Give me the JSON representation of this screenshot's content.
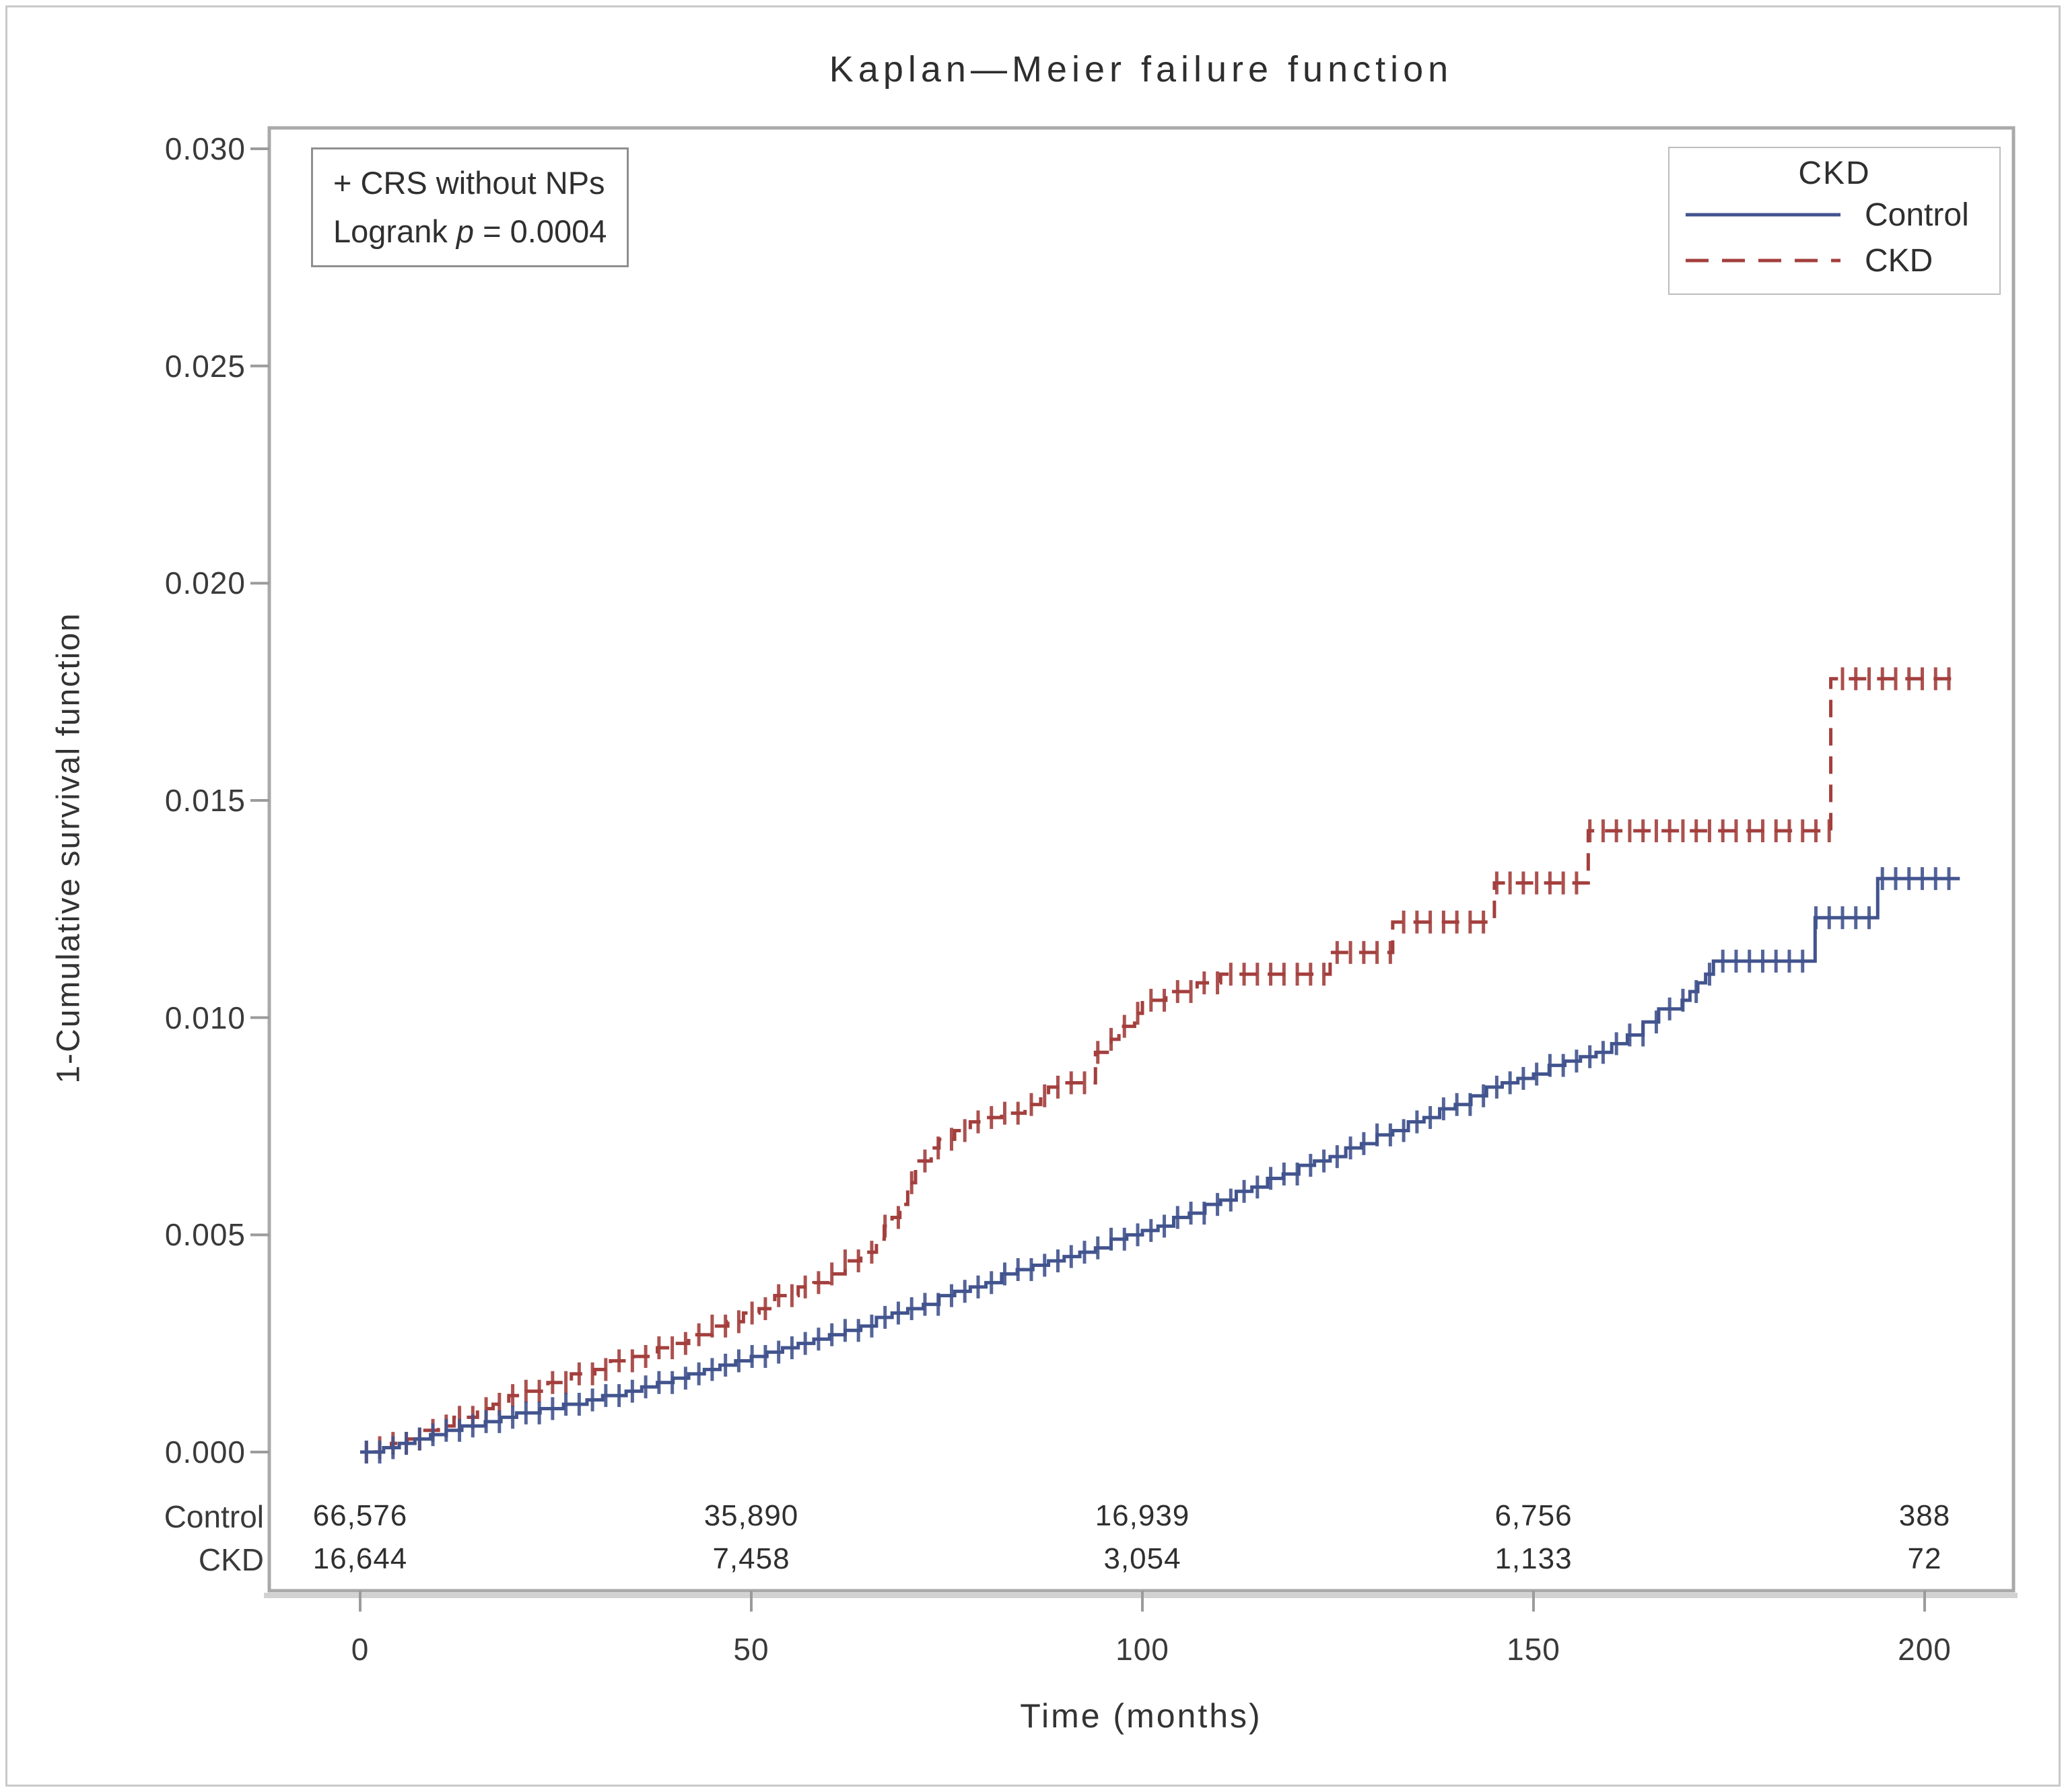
{
  "page": {
    "title": "Kaplan—Meier failure function"
  },
  "annotation": {
    "line1": "+ CRS without NPs",
    "line2_prefix": "Logrank ",
    "line2_italic": "p",
    "line2_suffix": " = 0.0004"
  },
  "legend": {
    "title": "CKD",
    "entries": [
      {
        "label": "Control",
        "style": "solid"
      },
      {
        "label": "CKD",
        "style": "dashed"
      }
    ]
  },
  "axes": {
    "y_label": "1-Cumulative survival function",
    "x_label": "Time (months)",
    "y_tick_labels": [
      "0.030",
      "0.025",
      "0.020",
      "0.015",
      "0.010",
      "0.005",
      "0.000"
    ],
    "x_tick_labels": [
      "0",
      "50",
      "100",
      "150",
      "200"
    ]
  },
  "risk_table": {
    "rows": [
      {
        "label": "Control",
        "counts": [
          "66,576",
          "35,890",
          "16,939",
          "6,756",
          "388"
        ]
      },
      {
        "label": "CKD",
        "counts": [
          "16,644",
          "7,458",
          "3,054",
          "1,133",
          "72"
        ]
      }
    ]
  },
  "chart_data": {
    "type": "line",
    "subtype": "kaplan-meier-failure-step",
    "title": "Kaplan—Meier failure function",
    "xlabel": "Time (months)",
    "ylabel": "1-Cumulative survival function",
    "xlim": [
      -11.6,
      211.4
    ],
    "ylim": [
      -0.0032,
      0.0305
    ],
    "x_ticks": [
      0,
      50,
      100,
      150,
      200
    ],
    "y_ticks": [
      0.03,
      0.025,
      0.02,
      0.015,
      0.01,
      0.005,
      0.0
    ],
    "grid": false,
    "legend_position": "top-right",
    "logrank_p": "0.0004",
    "annotation_text": "+ CRS without NPs",
    "censor_mark": "plus",
    "censor_interval_months": 1.7,
    "end_month": 204.5,
    "series": [
      {
        "name": "CKD",
        "color": "#a33f3d",
        "style": "dashed",
        "steps": [
          [
            0,
            0.0
          ],
          [
            2,
            0.0001
          ],
          [
            4,
            0.0002
          ],
          [
            6,
            0.0003
          ],
          [
            8,
            0.0005
          ],
          [
            10,
            0.0006
          ],
          [
            12,
            0.0008
          ],
          [
            15,
            0.001
          ],
          [
            17,
            0.0011
          ],
          [
            19,
            0.0013
          ],
          [
            21,
            0.0014
          ],
          [
            24,
            0.0016
          ],
          [
            27,
            0.0018
          ],
          [
            30,
            0.0019
          ],
          [
            32,
            0.0021
          ],
          [
            35,
            0.0022
          ],
          [
            38,
            0.0024
          ],
          [
            40,
            0.0025
          ],
          [
            42,
            0.0027
          ],
          [
            45,
            0.0029
          ],
          [
            47,
            0.003
          ],
          [
            49,
            0.0032
          ],
          [
            51,
            0.0033
          ],
          [
            53,
            0.0036
          ],
          [
            56,
            0.0038
          ],
          [
            58,
            0.0039
          ],
          [
            60,
            0.0041
          ],
          [
            62,
            0.0044
          ],
          [
            64,
            0.0046
          ],
          [
            66,
            0.0049
          ],
          [
            67,
            0.0052
          ],
          [
            68,
            0.0054
          ],
          [
            69,
            0.0057
          ],
          [
            70,
            0.0062
          ],
          [
            71,
            0.0067
          ],
          [
            73,
            0.007
          ],
          [
            74,
            0.0072
          ],
          [
            76,
            0.0074
          ],
          [
            78,
            0.0076
          ],
          [
            80,
            0.0077
          ],
          [
            82,
            0.0078
          ],
          [
            85,
            0.008
          ],
          [
            87,
            0.0082
          ],
          [
            88,
            0.0084
          ],
          [
            90,
            0.0085
          ],
          [
            94,
            0.0092
          ],
          [
            96,
            0.0095
          ],
          [
            97,
            0.0098
          ],
          [
            99,
            0.0101
          ],
          [
            100,
            0.0104
          ],
          [
            103,
            0.0106
          ],
          [
            107,
            0.0108
          ],
          [
            110,
            0.011
          ],
          [
            124,
            0.0115
          ],
          [
            132,
            0.0122
          ],
          [
            145,
            0.0131
          ],
          [
            157,
            0.0143
          ],
          [
            188,
            0.0178
          ]
        ]
      },
      {
        "name": "Control",
        "color": "#42548e",
        "style": "solid",
        "steps": [
          [
            0,
            0.0
          ],
          [
            3,
            0.0001
          ],
          [
            5,
            0.0002
          ],
          [
            7,
            0.0003
          ],
          [
            9,
            0.0004
          ],
          [
            11,
            0.0005
          ],
          [
            13,
            0.0006
          ],
          [
            16,
            0.0007
          ],
          [
            18,
            0.0008
          ],
          [
            20,
            0.0009
          ],
          [
            23,
            0.001
          ],
          [
            26,
            0.0011
          ],
          [
            29,
            0.0012
          ],
          [
            31,
            0.0013
          ],
          [
            34,
            0.0014
          ],
          [
            36,
            0.0015
          ],
          [
            38,
            0.0016
          ],
          [
            40,
            0.0017
          ],
          [
            42,
            0.0018
          ],
          [
            44,
            0.0019
          ],
          [
            46,
            0.002
          ],
          [
            48,
            0.0021
          ],
          [
            50,
            0.0022
          ],
          [
            52,
            0.0023
          ],
          [
            54,
            0.0024
          ],
          [
            56,
            0.0025
          ],
          [
            58,
            0.0026
          ],
          [
            60,
            0.0027
          ],
          [
            62,
            0.0028
          ],
          [
            64,
            0.0029
          ],
          [
            66,
            0.0031
          ],
          [
            68,
            0.0032
          ],
          [
            70,
            0.0033
          ],
          [
            72,
            0.0034
          ],
          [
            74,
            0.0036
          ],
          [
            76,
            0.0037
          ],
          [
            78,
            0.0038
          ],
          [
            80,
            0.0039
          ],
          [
            82,
            0.0041
          ],
          [
            84,
            0.0042
          ],
          [
            86,
            0.0043
          ],
          [
            88,
            0.0044
          ],
          [
            90,
            0.0045
          ],
          [
            92,
            0.0046
          ],
          [
            94,
            0.0047
          ],
          [
            96,
            0.0049
          ],
          [
            98,
            0.005
          ],
          [
            100,
            0.0051
          ],
          [
            102,
            0.0052
          ],
          [
            104,
            0.0054
          ],
          [
            106,
            0.0055
          ],
          [
            108,
            0.0057
          ],
          [
            110,
            0.0058
          ],
          [
            112,
            0.006
          ],
          [
            114,
            0.0061
          ],
          [
            116,
            0.0063
          ],
          [
            118,
            0.0064
          ],
          [
            120,
            0.0066
          ],
          [
            122,
            0.0067
          ],
          [
            124,
            0.0068
          ],
          [
            126,
            0.007
          ],
          [
            128,
            0.0071
          ],
          [
            130,
            0.0073
          ],
          [
            132,
            0.0074
          ],
          [
            134,
            0.0076
          ],
          [
            136,
            0.0077
          ],
          [
            138,
            0.0079
          ],
          [
            140,
            0.008
          ],
          [
            142,
            0.0082
          ],
          [
            144,
            0.0084
          ],
          [
            146,
            0.0085
          ],
          [
            148,
            0.0086
          ],
          [
            150,
            0.0087
          ],
          [
            152,
            0.0089
          ],
          [
            154,
            0.009
          ],
          [
            156,
            0.0091
          ],
          [
            158,
            0.0092
          ],
          [
            160,
            0.0094
          ],
          [
            162,
            0.0096
          ],
          [
            164,
            0.0099
          ],
          [
            166,
            0.0102
          ],
          [
            169,
            0.0104
          ],
          [
            170,
            0.0106
          ],
          [
            171,
            0.0108
          ],
          [
            172,
            0.011
          ],
          [
            173,
            0.0113
          ],
          [
            186,
            0.0123
          ],
          [
            194,
            0.0132
          ]
        ]
      }
    ]
  }
}
